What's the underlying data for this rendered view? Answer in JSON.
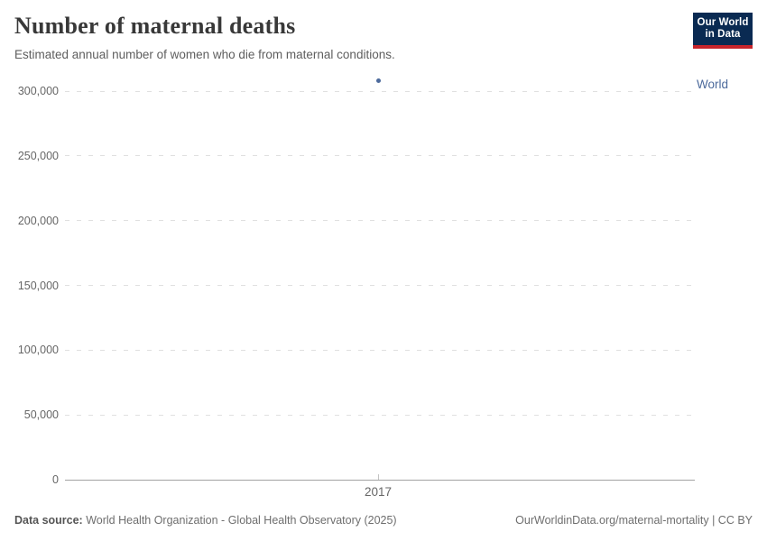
{
  "header": {
    "title": "Number of maternal deaths",
    "subtitle": "Estimated annual number of women who die from maternal conditions.",
    "logo": {
      "line1": "Our World",
      "line2": "in Data",
      "bg_color": "#0A2A52",
      "stripe_color": "#C7242B",
      "text_color": "#FFFFFF"
    }
  },
  "chart_data": {
    "type": "scatter",
    "title": "Number of maternal deaths",
    "subtitle": "Estimated annual number of women who die from maternal conditions.",
    "series": [
      {
        "name": "World",
        "color": "#4C6A9C",
        "points": [
          {
            "year": 2017,
            "value": 308000
          }
        ]
      }
    ],
    "x_ticks": [
      2017
    ],
    "x_tick_labels": [
      "2017"
    ],
    "y_ticks": [
      0,
      50000,
      100000,
      150000,
      200000,
      250000,
      300000
    ],
    "ylim": [
      0,
      300000
    ],
    "grid": "horizontal-dashed",
    "legend_position": "right-entity-label",
    "entity_label": "World",
    "colors": {
      "grid": "#E0E0E0",
      "axis": "#A3A3A3",
      "tick": "#C4C4C4",
      "tick_text": "#666666"
    }
  },
  "footer": {
    "source_label": "Data source:",
    "source_text": "World Health Organization - Global Health Observatory (2025)",
    "right_text": "OurWorldinData.org/maternal-mortality | CC BY"
  }
}
